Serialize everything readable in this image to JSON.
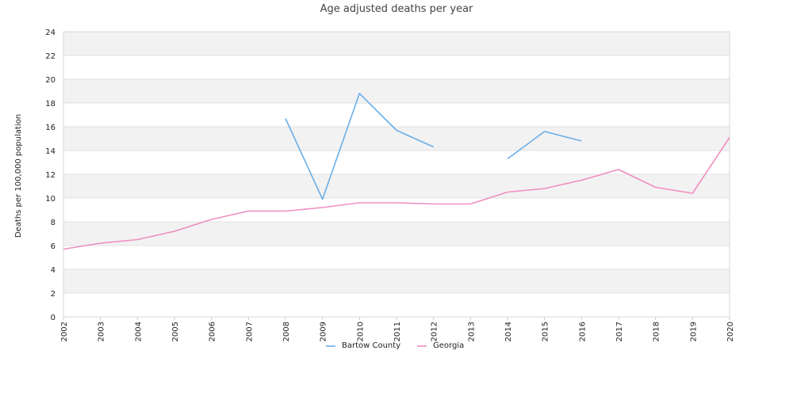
{
  "chart_data": {
    "type": "line",
    "title": "Age adjusted deaths per year",
    "xlabel": "",
    "ylabel": "Deaths per 100,000 population",
    "ylim": [
      0,
      24
    ],
    "yticks": [
      0,
      2,
      4,
      6,
      8,
      10,
      12,
      14,
      16,
      18,
      20,
      22,
      24
    ],
    "categories": [
      "2002",
      "2003",
      "2004",
      "2005",
      "2006",
      "2007",
      "2008",
      "2009",
      "2010",
      "2011",
      "2012",
      "2013",
      "2014",
      "2015",
      "2016",
      "2017",
      "2018",
      "2019",
      "2020"
    ],
    "grid": "horizontal alternating bands",
    "legend_position": "bottom",
    "series": [
      {
        "name": "Bartow County",
        "color": "#6aaee8",
        "values": [
          null,
          null,
          null,
          null,
          null,
          null,
          16.7,
          9.9,
          18.8,
          15.7,
          14.3,
          null,
          13.3,
          15.6,
          14.8,
          null,
          null,
          null,
          null
        ]
      },
      {
        "name": "Georgia",
        "color": "#f08ec0",
        "values": [
          5.7,
          6.2,
          6.5,
          7.2,
          8.2,
          8.9,
          8.9,
          9.2,
          9.6,
          9.6,
          9.5,
          9.5,
          10.5,
          10.8,
          11.5,
          12.4,
          10.9,
          10.4,
          15.1
        ]
      }
    ]
  }
}
